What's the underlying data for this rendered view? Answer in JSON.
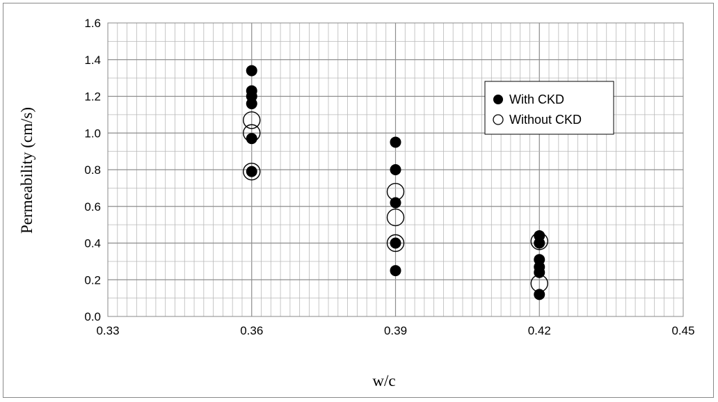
{
  "chart_data": {
    "type": "scatter",
    "title": "",
    "xlabel": "w/c",
    "ylabel": "Permeability (cm/s)",
    "xlim": [
      0.33,
      0.45
    ],
    "ylim": [
      0.0,
      1.6
    ],
    "x_ticks": [
      "0.33",
      "0.36",
      "0.39",
      "0.42",
      "0.45"
    ],
    "y_ticks": [
      "0.0",
      "0.2",
      "0.4",
      "0.6",
      "0.8",
      "1.0",
      "1.2",
      "1.4",
      "1.6"
    ],
    "grid": "major and minor, both axes",
    "legend_position": "top-right",
    "series": [
      {
        "name": "With CKD",
        "marker": "filled-circle",
        "color": "#000000",
        "points": [
          [
            0.36,
            1.34
          ],
          [
            0.36,
            1.23
          ],
          [
            0.36,
            1.2
          ],
          [
            0.36,
            1.16
          ],
          [
            0.36,
            0.97
          ],
          [
            0.36,
            0.79
          ],
          [
            0.39,
            0.95
          ],
          [
            0.39,
            0.8
          ],
          [
            0.39,
            0.62
          ],
          [
            0.39,
            0.4
          ],
          [
            0.39,
            0.25
          ],
          [
            0.42,
            0.44
          ],
          [
            0.42,
            0.4
          ],
          [
            0.42,
            0.31
          ],
          [
            0.42,
            0.27
          ],
          [
            0.42,
            0.24
          ],
          [
            0.42,
            0.12
          ]
        ]
      },
      {
        "name": "Without CKD",
        "marker": "open-circle",
        "color": "#000000",
        "points": [
          [
            0.36,
            1.07
          ],
          [
            0.36,
            1.0
          ],
          [
            0.36,
            0.79
          ],
          [
            0.39,
            0.68
          ],
          [
            0.39,
            0.54
          ],
          [
            0.39,
            0.4
          ],
          [
            0.42,
            0.41
          ],
          [
            0.42,
            0.18
          ]
        ]
      }
    ]
  }
}
